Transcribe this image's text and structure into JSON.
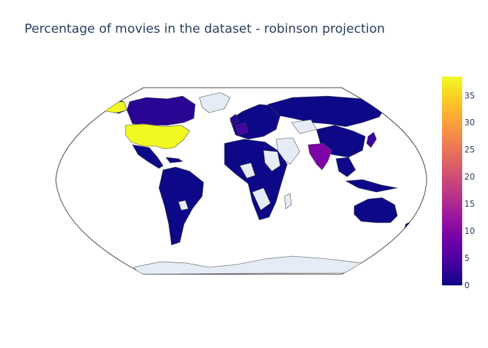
{
  "title": "Percentage of movies in the dataset - robinson projection",
  "projection": "robinson",
  "map_data": {
    "type": "choropleth",
    "colorscale": "Plasma",
    "range": [
      0,
      38.5
    ],
    "colorbar_ticks": [
      "0",
      "5",
      "10",
      "15",
      "20",
      "25",
      "30",
      "35"
    ],
    "missing_color": "#e5ecf6",
    "regions": [
      {
        "name": "United States",
        "value": 38
      },
      {
        "name": "India",
        "value": 11
      },
      {
        "name": "France",
        "value": 5
      },
      {
        "name": "Japan",
        "value": 3
      },
      {
        "name": "Canada",
        "value": 2
      },
      {
        "name": "United Kingdom",
        "value": 2
      },
      {
        "name": "Other countries",
        "value": 0.5
      }
    ]
  }
}
